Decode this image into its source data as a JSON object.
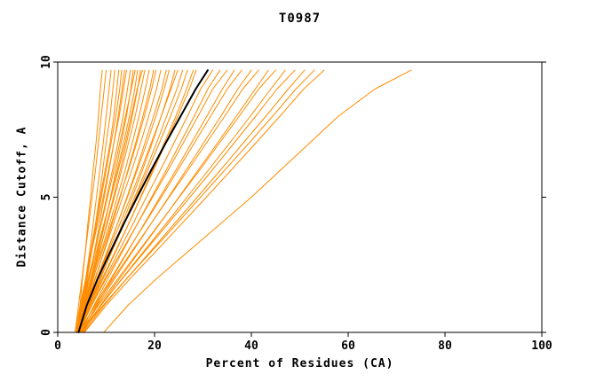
{
  "chart_data": {
    "type": "line",
    "title": "T0987",
    "xlabel": "Percent of Residues (CA)",
    "ylabel": "Distance Cutoff, A",
    "xlim": [
      0,
      100
    ],
    "ylim": [
      0,
      10
    ],
    "x_ticks": [
      0,
      20,
      40,
      60,
      80,
      100
    ],
    "y_ticks": [
      0,
      5,
      10
    ],
    "grid": false,
    "legend": "none",
    "colors": {
      "models": "#ff8c00",
      "highlight": "#000000",
      "frame": "#000000",
      "background": "#ffffff"
    },
    "y_grid": [
      0,
      1,
      2,
      3,
      4,
      5,
      6,
      7,
      8,
      9,
      9.7
    ],
    "series": [
      {
        "name": "model-curves",
        "color": "#ff8c00",
        "lines": [
          [
            4.0,
            4.6,
            5.1,
            5.7,
            6.2,
            6.8,
            7.3,
            7.9,
            8.4,
            8.8,
            9.2
          ],
          [
            3.6,
            4.3,
            5.0,
            5.7,
            6.4,
            7.1,
            7.8,
            8.4,
            9.0,
            9.6,
            10.0
          ],
          [
            4.0,
            4.9,
            5.8,
            6.6,
            7.3,
            8.0,
            8.7,
            9.4,
            10.0,
            10.6,
            11.0
          ],
          [
            4.5,
            5.3,
            6.1,
            7.0,
            7.8,
            8.6,
            9.3,
            10.0,
            10.8,
            11.4,
            11.8
          ],
          [
            3.8,
            4.8,
            5.8,
            6.8,
            7.8,
            8.8,
            9.8,
            10.8,
            11.6,
            12.2,
            12.6
          ],
          [
            4.0,
            5.0,
            6.0,
            7.0,
            8.0,
            9.0,
            10.0,
            11.0,
            12.0,
            12.8,
            13.2
          ],
          [
            4.2,
            5.4,
            6.5,
            7.6,
            8.6,
            9.6,
            10.6,
            11.6,
            12.5,
            13.3,
            13.8
          ],
          [
            3.6,
            4.6,
            5.8,
            7.0,
            8.2,
            9.4,
            10.5,
            11.6,
            12.7,
            13.6,
            14.2
          ],
          [
            4.0,
            5.2,
            6.4,
            7.7,
            8.9,
            10.1,
            11.3,
            12.4,
            13.5,
            14.4,
            15.0
          ],
          [
            4.4,
            5.6,
            7.0,
            8.4,
            9.7,
            10.9,
            12.0,
            13.1,
            14.2,
            15.1,
            15.6
          ],
          [
            3.9,
            5.0,
            6.3,
            7.7,
            9.0,
            10.3,
            11.6,
            12.8,
            14.0,
            15.2,
            16.0
          ],
          [
            4.1,
            5.4,
            6.8,
            8.2,
            9.6,
            11.0,
            12.3,
            13.6,
            14.8,
            15.9,
            16.5
          ],
          [
            4.3,
            5.7,
            7.2,
            8.7,
            10.1,
            11.5,
            12.9,
            14.2,
            15.4,
            16.5,
            17.1
          ],
          [
            3.7,
            5.0,
            6.5,
            8.0,
            9.5,
            11.0,
            12.5,
            13.9,
            15.2,
            16.4,
            17.5
          ],
          [
            4.0,
            5.5,
            7.0,
            8.6,
            10.2,
            11.7,
            13.2,
            14.6,
            16.0,
            17.2,
            18.0
          ],
          [
            4.2,
            5.8,
            7.4,
            9.0,
            10.7,
            12.3,
            13.9,
            15.4,
            16.8,
            18.1,
            18.9
          ],
          [
            4.5,
            6.0,
            7.8,
            9.5,
            11.2,
            12.9,
            14.5,
            16.1,
            17.6,
            19.0,
            19.8
          ],
          [
            3.8,
            5.5,
            7.3,
            9.2,
            11.0,
            12.8,
            14.6,
            16.3,
            17.9,
            19.4,
            20.3
          ],
          [
            4.0,
            5.8,
            7.7,
            9.6,
            11.5,
            13.4,
            15.3,
            17.1,
            18.8,
            20.4,
            21.3
          ],
          [
            4.4,
            6.3,
            8.3,
            10.3,
            12.3,
            14.3,
            16.2,
            18.0,
            19.8,
            21.5,
            22.4
          ],
          [
            4.1,
            6.0,
            8.1,
            10.2,
            12.3,
            14.4,
            16.4,
            18.4,
            20.3,
            22.0,
            23.0
          ],
          [
            4.6,
            6.7,
            8.9,
            11.1,
            13.3,
            15.4,
            17.5,
            19.5,
            21.4,
            23.2,
            24.2
          ],
          [
            3.9,
            6.0,
            8.2,
            10.5,
            12.8,
            15.0,
            17.2,
            19.3,
            21.4,
            23.4,
            24.8
          ],
          [
            4.3,
            6.5,
            8.8,
            11.2,
            13.6,
            15.9,
            18.2,
            20.4,
            22.5,
            24.6,
            25.8
          ],
          [
            4.0,
            6.3,
            8.7,
            11.2,
            13.7,
            16.2,
            18.6,
            21.0,
            23.3,
            25.5,
            26.8
          ],
          [
            4.5,
            6.9,
            9.4,
            12.0,
            14.6,
            17.1,
            19.6,
            22.0,
            24.4,
            26.6,
            28.0
          ],
          [
            4.2,
            6.6,
            9.2,
            11.9,
            14.6,
            17.2,
            19.8,
            22.3,
            24.8,
            27.2,
            28.6
          ],
          [
            4.4,
            7.0,
            9.8,
            12.6,
            15.5,
            18.3,
            21.2,
            24.0,
            26.8,
            29.5,
            32.0
          ],
          [
            4.8,
            7.5,
            10.4,
            13.4,
            16.4,
            19.4,
            22.4,
            25.3,
            28.2,
            31.0,
            33.5
          ],
          [
            4.1,
            7.0,
            10.0,
            13.2,
            16.4,
            19.6,
            22.8,
            25.9,
            29.0,
            32.0,
            35.0
          ],
          [
            5.0,
            8.0,
            11.2,
            14.5,
            17.8,
            21.1,
            24.4,
            27.6,
            30.8,
            34.0,
            36.5
          ],
          [
            4.5,
            7.6,
            11.0,
            14.4,
            17.9,
            21.4,
            24.8,
            28.2,
            31.6,
            35.0,
            38.0
          ],
          [
            4.9,
            8.2,
            11.8,
            15.5,
            19.2,
            22.9,
            26.5,
            30.1,
            33.7,
            37.2,
            40.0
          ],
          [
            4.3,
            7.8,
            11.5,
            15.3,
            19.2,
            23.0,
            26.9,
            30.7,
            34.5,
            38.2,
            41.5
          ],
          [
            5.2,
            8.8,
            12.8,
            16.9,
            21.0,
            25.0,
            29.0,
            33.0,
            36.9,
            40.8,
            43.5
          ],
          [
            4.6,
            8.4,
            12.5,
            16.7,
            20.9,
            25.1,
            29.3,
            33.4,
            37.5,
            41.5,
            45.0
          ],
          [
            5.0,
            9.0,
            13.3,
            17.8,
            22.3,
            26.7,
            31.1,
            35.5,
            39.8,
            44.0,
            47.0
          ],
          [
            4.7,
            8.9,
            13.4,
            18.0,
            22.7,
            27.3,
            31.9,
            36.4,
            40.9,
            45.3,
            49.0
          ],
          [
            5.3,
            9.6,
            14.3,
            19.2,
            24.0,
            28.8,
            33.6,
            38.3,
            43.0,
            47.6,
            51.0
          ],
          [
            4.8,
            9.4,
            14.3,
            19.4,
            24.5,
            29.5,
            34.5,
            39.5,
            44.4,
            49.2,
            53.0
          ],
          [
            5.5,
            10.0,
            15.0,
            20.3,
            25.5,
            30.7,
            35.8,
            40.9,
            45.9,
            50.8,
            55.0
          ],
          [
            9.5,
            14.5,
            20.5,
            27.0,
            33.5,
            40.0,
            46.0,
            52.0,
            58.0,
            65.5,
            73.0
          ]
        ]
      },
      {
        "name": "highlighted-model",
        "color": "#000000",
        "lines": [
          [
            4.3,
            6.0,
            8.3,
            10.9,
            13.6,
            16.4,
            19.3,
            22.3,
            25.4,
            28.5,
            31.0
          ]
        ]
      }
    ]
  }
}
